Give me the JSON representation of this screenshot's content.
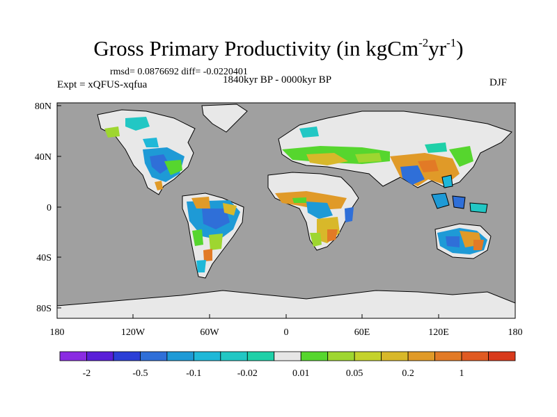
{
  "title": "Gross Primary Productivity (in kgCm",
  "title_exp1": "-2",
  "title_mid": "yr",
  "title_exp2": "-1",
  "title_end": ")",
  "stats": "rmsd= 0.0876692 diff= -0.0220401",
  "period": "1840kyr BP - 0000kyr BP",
  "experiment": "Expt = xQFUS-xqfua",
  "season": "DJF",
  "lat_labels": [
    "80N",
    "40N",
    "0",
    "40S",
    "80S"
  ],
  "lon_labels": [
    "180",
    "120W",
    "60W",
    "0",
    "60E",
    "120E",
    "180"
  ],
  "colorbar": {
    "colors": [
      "#8a2be2",
      "#5a1fd8",
      "#2b3fd6",
      "#2f6fd8",
      "#1e9ad6",
      "#1fb8d8",
      "#22c7c4",
      "#1fd0a8",
      "#e6e6e6",
      "#56d62e",
      "#9ed630",
      "#c4d22c",
      "#d8b82a",
      "#e09a28",
      "#e27a26",
      "#e05a22",
      "#d83a1c"
    ],
    "labels": [
      "-2",
      "-0.5",
      "-0.1",
      "-0.02",
      "0.01",
      "0.05",
      "0.2",
      "1"
    ],
    "label_after_box": [
      1,
      3,
      5,
      7,
      9,
      11,
      13,
      15
    ]
  },
  "colors": {
    "ocean": "#a0a0a0",
    "land_neutral": "#e8e8e8",
    "coastline": "#000000"
  }
}
